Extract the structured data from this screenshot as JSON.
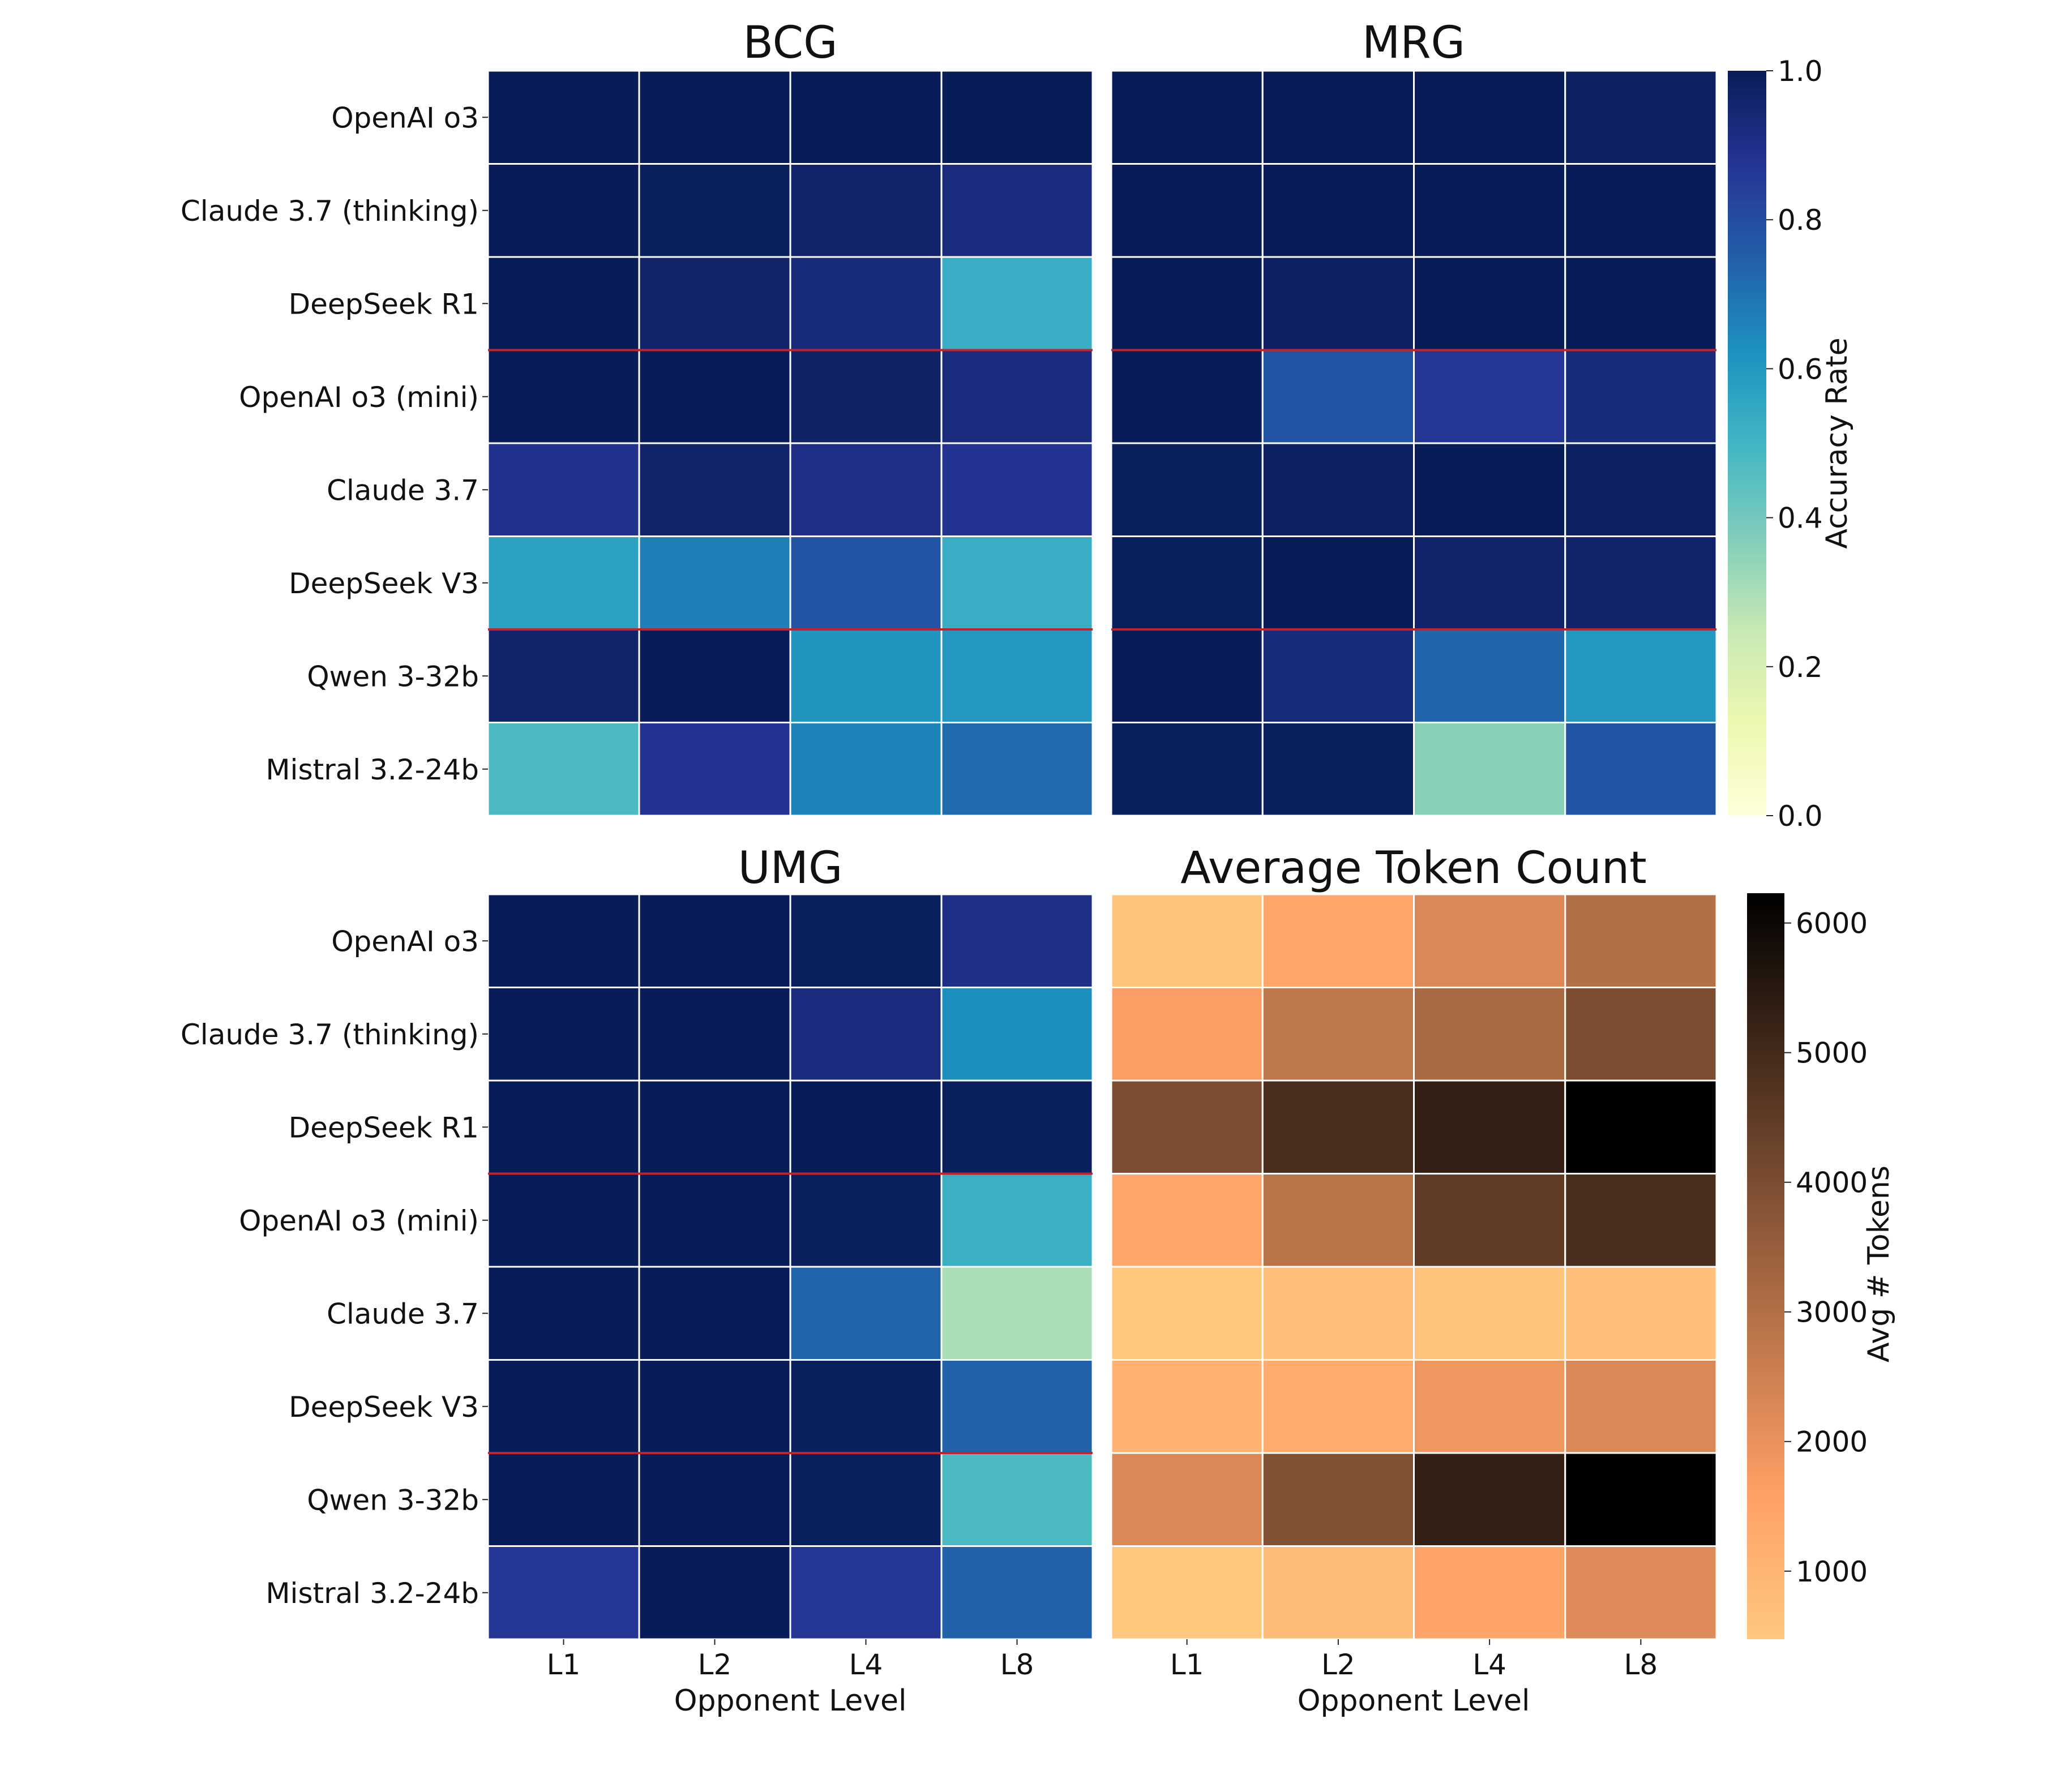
{
  "chart_data": [
    {
      "type": "heatmap",
      "title": "BCG",
      "xlabel": "",
      "ylabel": "",
      "x_categories": [
        "L1",
        "L2",
        "L4",
        "L8"
      ],
      "y_categories": [
        "OpenAI o3",
        "Claude 3.7 (thinking)",
        "DeepSeek R1",
        "OpenAI o3 (mini)",
        "Claude 3.7",
        "DeepSeek V3",
        "Qwen 3-32b",
        "Mistral 3.2-24b"
      ],
      "values": [
        [
          1.0,
          1.0,
          1.0,
          1.0
        ],
        [
          1.0,
          0.99,
          0.96,
          0.92
        ],
        [
          1.0,
          0.96,
          0.93,
          0.53
        ],
        [
          1.0,
          1.0,
          0.97,
          0.92
        ],
        [
          0.89,
          0.96,
          0.9,
          0.88
        ],
        [
          0.57,
          0.67,
          0.78,
          0.53
        ],
        [
          0.96,
          1.0,
          0.61,
          0.6
        ],
        [
          0.48,
          0.88,
          0.66,
          0.72
        ]
      ],
      "colormap": "YlGnBu",
      "vmin": 0.0,
      "vmax": 1.0,
      "group_separators_after_rows": [
        3,
        6
      ],
      "separator_color": "#c8202a"
    },
    {
      "type": "heatmap",
      "title": "MRG",
      "xlabel": "",
      "ylabel": "",
      "x_categories": [
        "L1",
        "L2",
        "L4",
        "L8"
      ],
      "y_categories": [
        "OpenAI o3",
        "Claude 3.7 (thinking)",
        "DeepSeek R1",
        "OpenAI o3 (mini)",
        "Claude 3.7",
        "DeepSeek V3",
        "Qwen 3-32b",
        "Mistral 3.2-24b"
      ],
      "values": [
        [
          1.0,
          1.0,
          1.0,
          0.98
        ],
        [
          1.0,
          1.0,
          1.0,
          1.0
        ],
        [
          1.0,
          0.98,
          1.0,
          1.0
        ],
        [
          1.0,
          0.78,
          0.87,
          0.93
        ],
        [
          0.99,
          0.98,
          1.0,
          0.98
        ],
        [
          0.99,
          1.0,
          0.96,
          0.96
        ],
        [
          1.0,
          0.93,
          0.73,
          0.6
        ],
        [
          0.99,
          0.99,
          0.36,
          0.78
        ]
      ],
      "colormap": "YlGnBu",
      "vmin": 0.0,
      "vmax": 1.0,
      "group_separators_after_rows": [
        3,
        6
      ],
      "separator_color": "#c8202a"
    },
    {
      "type": "heatmap",
      "title": "UMG",
      "xlabel": "Opponent Level",
      "ylabel": "",
      "x_categories": [
        "L1",
        "L2",
        "L4",
        "L8"
      ],
      "y_categories": [
        "OpenAI o3",
        "Claude 3.7 (thinking)",
        "DeepSeek R1",
        "OpenAI o3 (mini)",
        "Claude 3.7",
        "DeepSeek V3",
        "Qwen 3-32b",
        "Mistral 3.2-24b"
      ],
      "values": [
        [
          1.0,
          1.0,
          0.99,
          0.9
        ],
        [
          1.0,
          1.0,
          0.92,
          0.63
        ],
        [
          1.0,
          1.0,
          1.0,
          0.99
        ],
        [
          1.0,
          1.0,
          0.99,
          0.52
        ],
        [
          1.0,
          1.0,
          0.73,
          0.3
        ],
        [
          1.0,
          1.0,
          0.99,
          0.74
        ],
        [
          1.0,
          1.0,
          0.99,
          0.48
        ],
        [
          0.87,
          1.0,
          0.87,
          0.74
        ]
      ],
      "colormap": "YlGnBu",
      "vmin": 0.0,
      "vmax": 1.0,
      "group_separators_after_rows": [
        3,
        6
      ],
      "separator_color": "#c8202a"
    },
    {
      "type": "heatmap",
      "title": "Average Token Count",
      "xlabel": "Opponent Level",
      "ylabel": "",
      "x_categories": [
        "L1",
        "L2",
        "L4",
        "L8"
      ],
      "y_categories": [
        "OpenAI o3",
        "Claude 3.7 (thinking)",
        "DeepSeek R1",
        "OpenAI o3 (mini)",
        "Claude 3.7",
        "DeepSeek V3",
        "Qwen 3-32b",
        "Mistral 3.2-24b"
      ],
      "values": [
        [
          600,
          1400,
          2300,
          3000
        ],
        [
          1700,
          2800,
          3200,
          4000
        ],
        [
          4000,
          4900,
          5300,
          6230
        ],
        [
          1400,
          2900,
          4500,
          4900
        ],
        [
          500,
          700,
          600,
          750
        ],
        [
          1100,
          1300,
          1900,
          2300
        ],
        [
          2300,
          3900,
          5300,
          6200
        ],
        [
          500,
          800,
          1500,
          2200
        ]
      ],
      "colormap": "copper_r",
      "vmin": 475,
      "vmax": 6230
    }
  ],
  "colorbars": {
    "accuracy": {
      "label": "Accuracy Rate",
      "ticks": [
        "0.0",
        "0.2",
        "0.4",
        "0.6",
        "0.8",
        "1.0"
      ],
      "tick_values": [
        0,
        0.2,
        0.4,
        0.6,
        0.8,
        1.0
      ]
    },
    "tokens": {
      "label": "Avg # Tokens",
      "ticks": [
        "1000",
        "2000",
        "3000",
        "4000",
        "5000",
        "6000"
      ],
      "tick_values": [
        1000,
        2000,
        3000,
        4000,
        5000,
        6000
      ]
    }
  },
  "caption_visible": ""
}
